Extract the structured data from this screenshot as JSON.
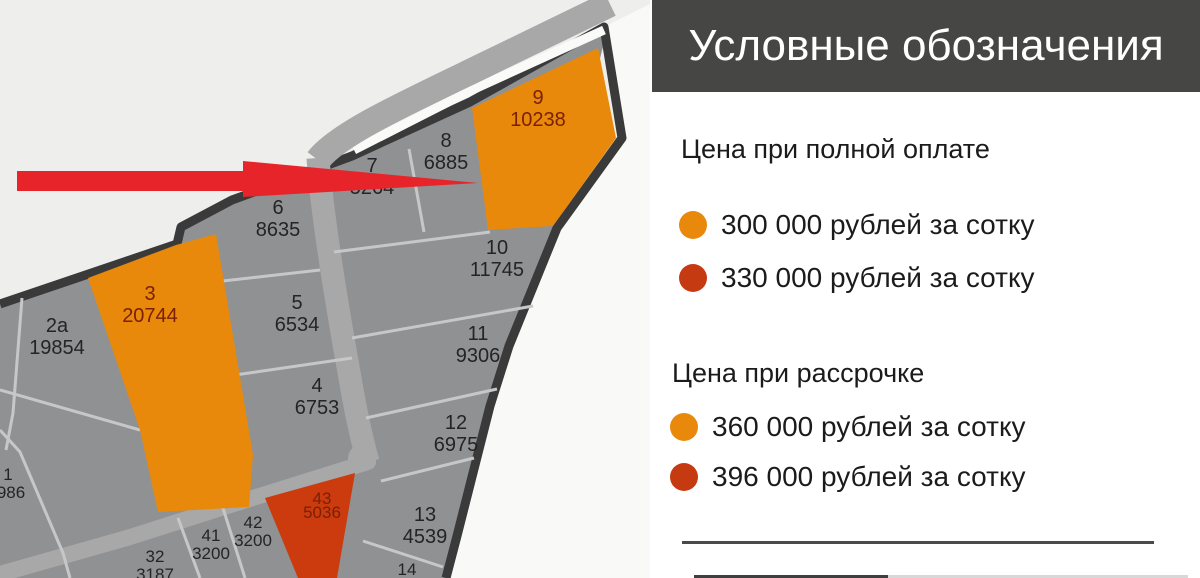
{
  "legend": {
    "title": "Условные обозначения",
    "sections": [
      {
        "heading": "Цена при полной оплате",
        "items": [
          {
            "color_key": "plot_orange",
            "label": "300 000 рублей за сотку"
          },
          {
            "color_key": "plot_red",
            "label": "330 000 рублей за сотку"
          }
        ]
      },
      {
        "heading": "Цена при рассрочке",
        "items": [
          {
            "color_key": "plot_orange",
            "label": "360 000 рублей за сотку"
          },
          {
            "color_key": "plot_red",
            "label": "396 000 рублей за сотку"
          }
        ]
      }
    ]
  },
  "map": {
    "plots": [
      {
        "id": "9",
        "number": "9",
        "area": "10238",
        "category": "orange"
      },
      {
        "id": "8",
        "number": "8",
        "area": "6885",
        "category": "gray"
      },
      {
        "id": "7",
        "number": "7",
        "area": "5264",
        "category": "gray"
      },
      {
        "id": "6",
        "number": "6",
        "area": "8635",
        "category": "gray"
      },
      {
        "id": "10",
        "number": "10",
        "area": "11745",
        "category": "gray"
      },
      {
        "id": "3",
        "number": "3",
        "area": "20744",
        "category": "orange"
      },
      {
        "id": "2a",
        "number": "2а",
        "area": "19854",
        "category": "gray"
      },
      {
        "id": "5",
        "number": "5",
        "area": "6534",
        "category": "gray"
      },
      {
        "id": "11",
        "number": "11",
        "area": "9306",
        "category": "gray"
      },
      {
        "id": "4",
        "number": "4",
        "area": "6753",
        "category": "gray"
      },
      {
        "id": "12",
        "number": "12",
        "area": "6975",
        "category": "gray"
      },
      {
        "id": "43",
        "number": "43",
        "area": "5036",
        "category": "red"
      },
      {
        "id": "13",
        "number": "13",
        "area": "4539",
        "category": "gray"
      },
      {
        "id": "42",
        "number": "42",
        "area": "3200",
        "category": "gray"
      },
      {
        "id": "41",
        "number": "41",
        "area": "3200",
        "category": "gray"
      },
      {
        "id": "32",
        "number": "32",
        "area": "3187",
        "category": "gray"
      },
      {
        "id": "14",
        "number": "14",
        "area": "",
        "category": "gray"
      },
      {
        "id": "1",
        "number": "1",
        "area": "986",
        "category": "gray"
      }
    ]
  },
  "colors": {
    "plot_orange": "#E8890B",
    "plot_red": "#C63A12",
    "plot_red_fill": "#CB3B0E",
    "plot_gray": "#8F9193",
    "road": "#A8A8A9",
    "border": "#3A3A3A",
    "arrow_red": "#E8242B",
    "header_bg": "#464644"
  }
}
